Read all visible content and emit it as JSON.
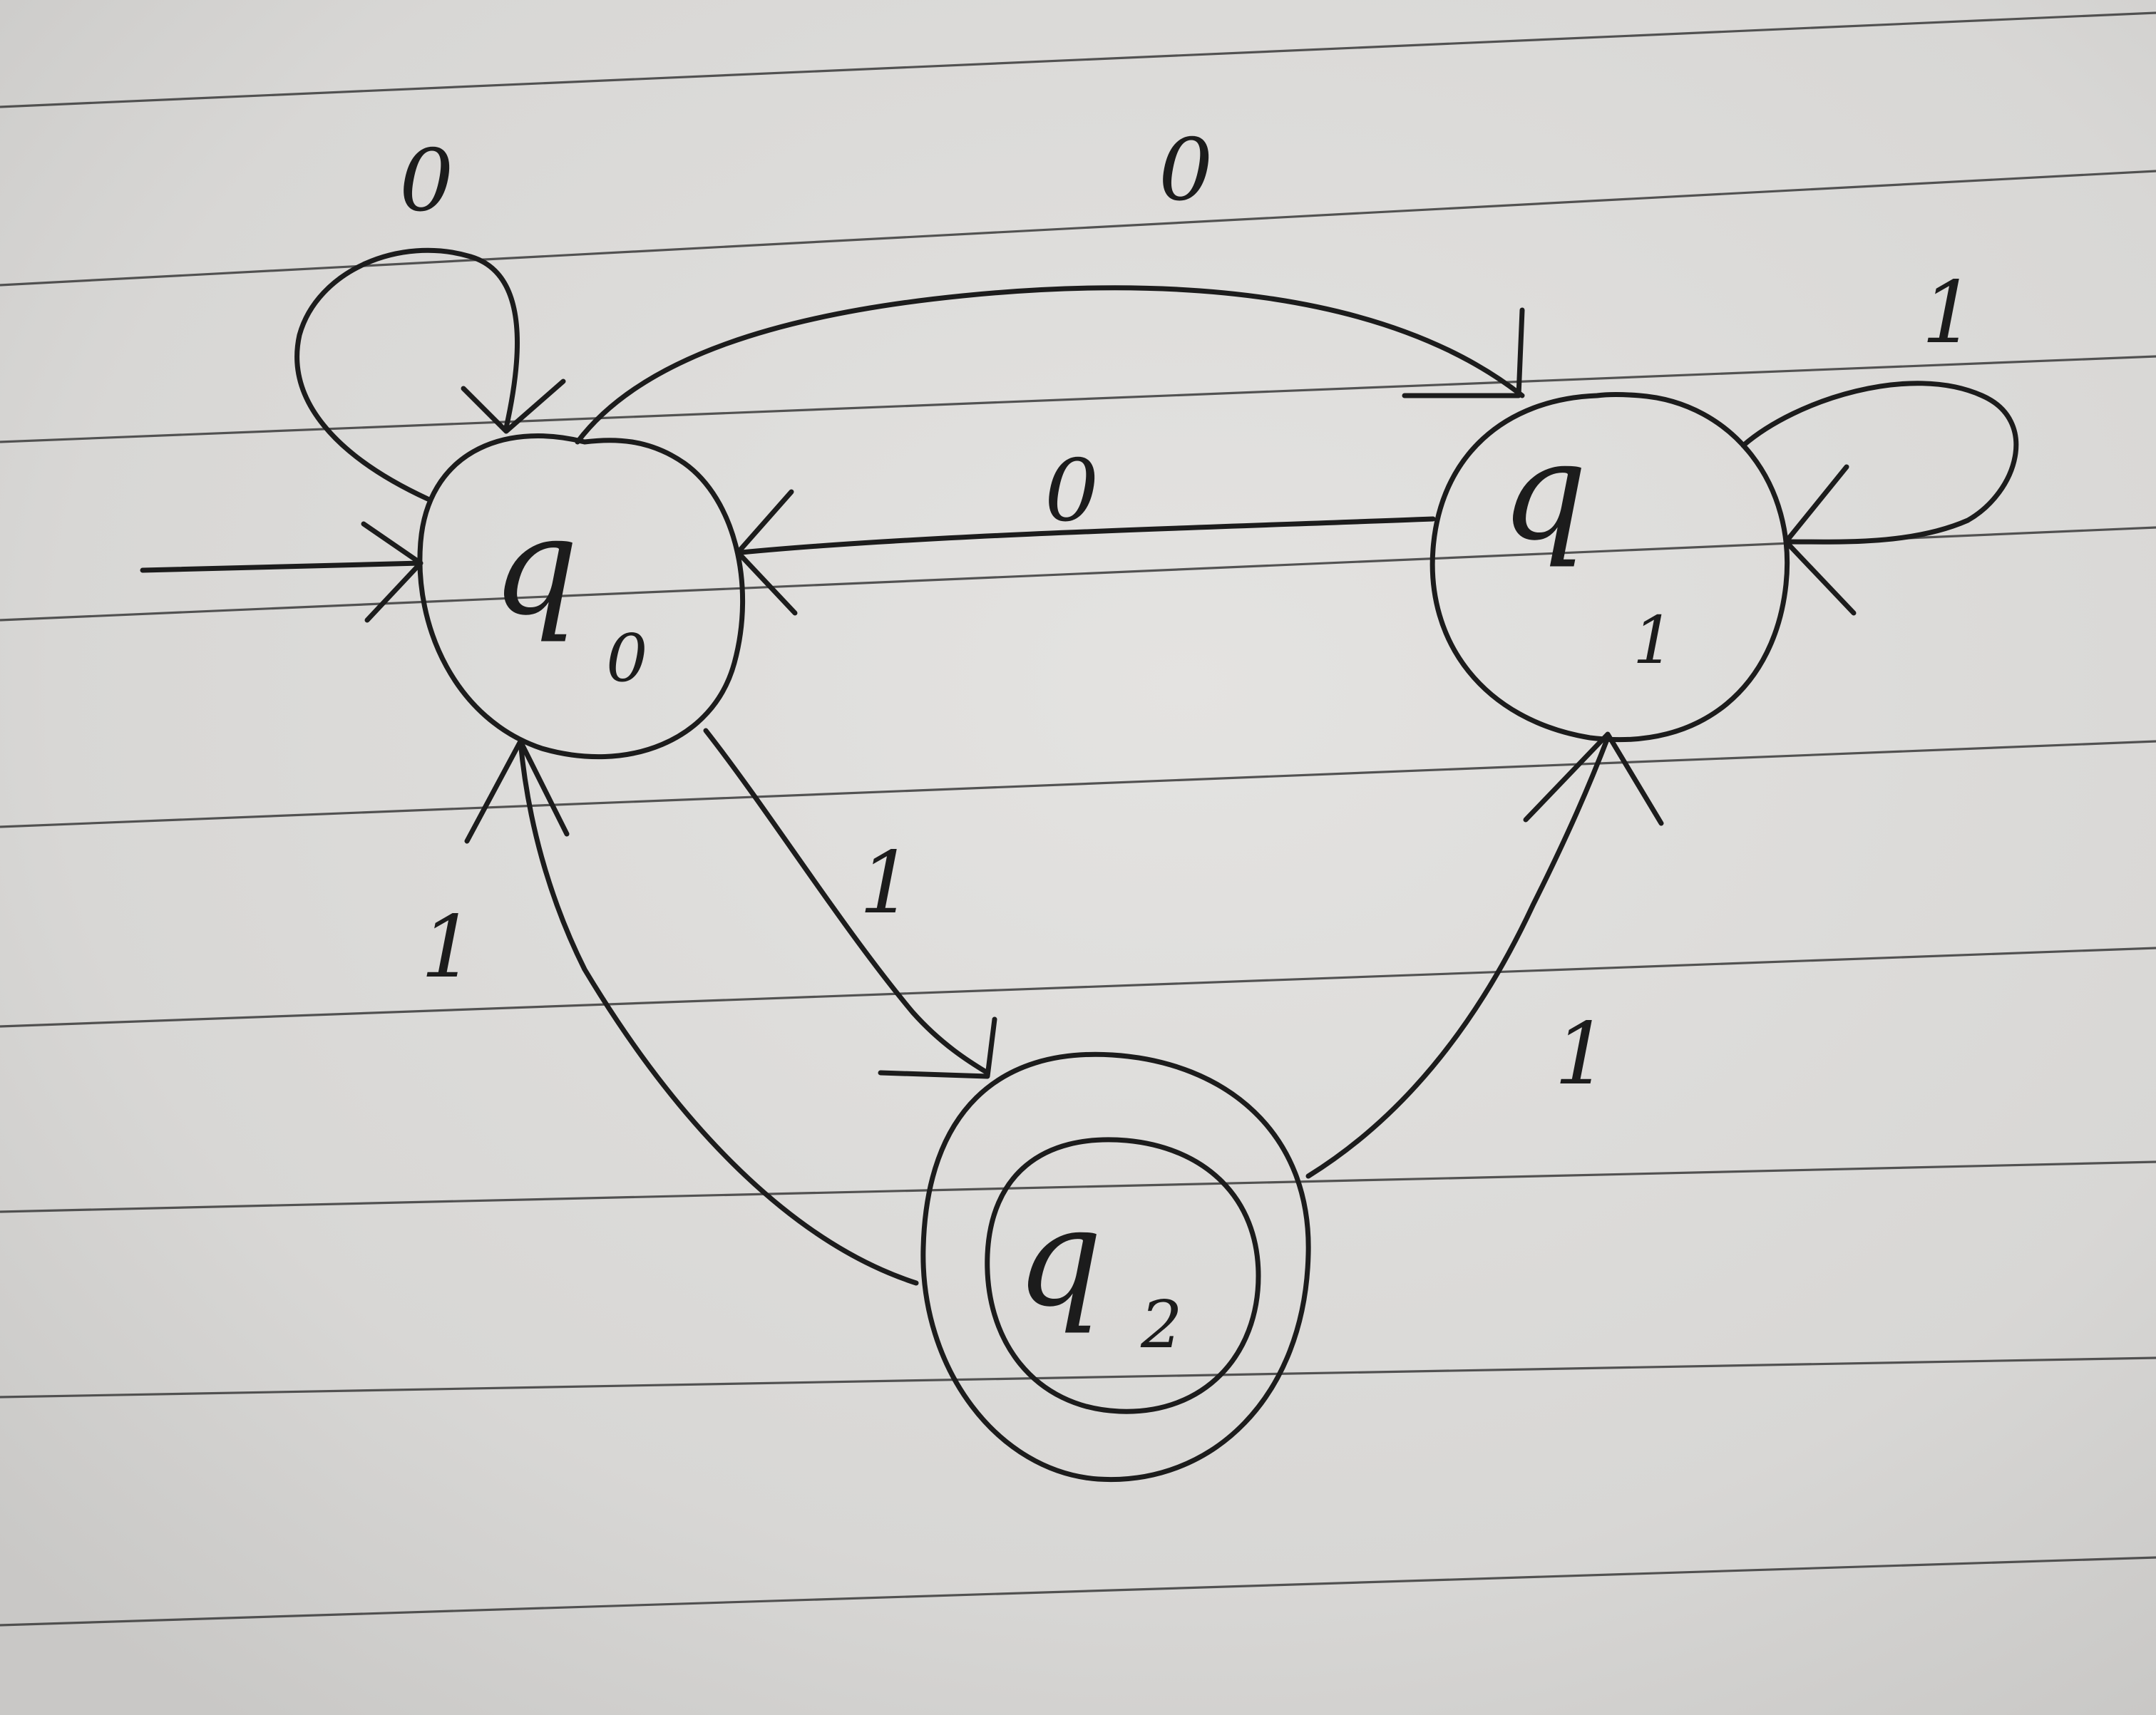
{
  "diagram": {
    "type": "finite-state-automaton",
    "medium": "hand-drawn on ruled notebook paper",
    "colors": {
      "paper": "#d9d8d6",
      "ink": "#1c1c1c",
      "rule_line": "#3a3a3a"
    },
    "states": [
      {
        "id": "q0",
        "letter": "q",
        "subscript": "0",
        "start": true,
        "accepting": false
      },
      {
        "id": "q1",
        "letter": "q",
        "subscript": "1",
        "start": false,
        "accepting": false
      },
      {
        "id": "q2",
        "letter": "q",
        "subscript": "2",
        "start": false,
        "accepting": true
      }
    ],
    "transitions": [
      {
        "id": "q0-self",
        "from": "q0",
        "to": "q0",
        "symbol": "0"
      },
      {
        "id": "q0-q1",
        "from": "q0",
        "to": "q1",
        "symbol": "0"
      },
      {
        "id": "q1-q0",
        "from": "q1",
        "to": "q0",
        "symbol": "0"
      },
      {
        "id": "q1-self",
        "from": "q1",
        "to": "q1",
        "symbol": "1"
      },
      {
        "id": "q0-q2",
        "from": "q0",
        "to": "q2",
        "symbol": "1"
      },
      {
        "id": "q2-q0",
        "from": "q2",
        "to": "q0",
        "symbol": "1"
      },
      {
        "id": "q2-q1",
        "from": "q2",
        "to": "q1",
        "symbol": "1"
      }
    ]
  }
}
